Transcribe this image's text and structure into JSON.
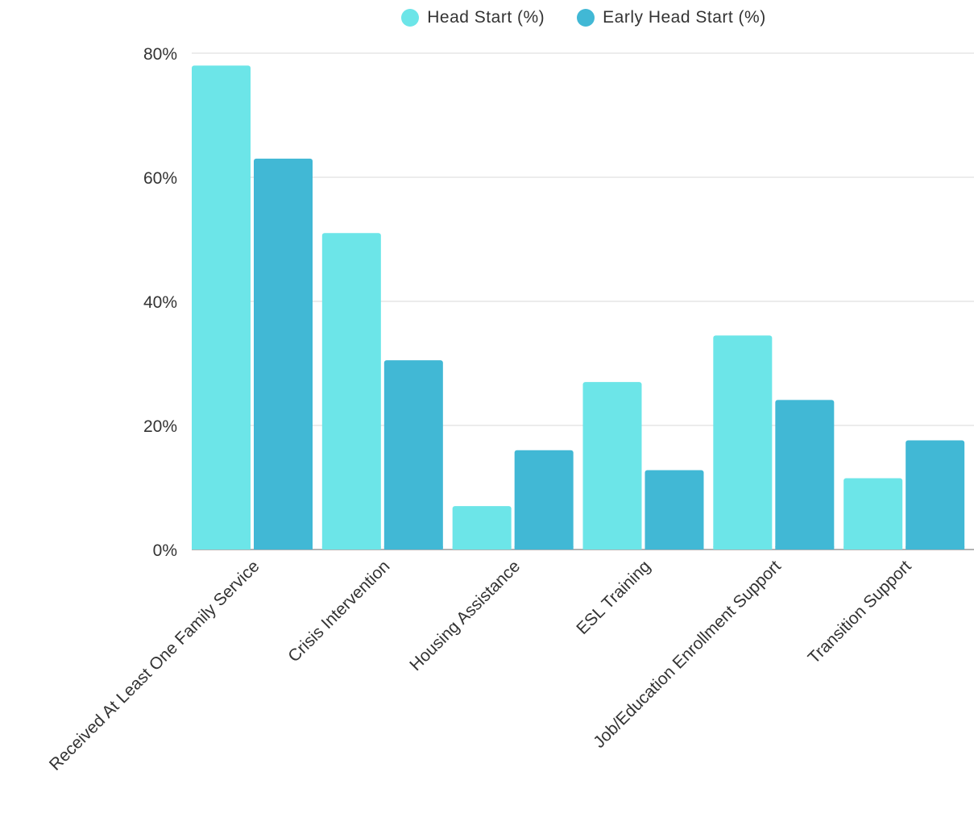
{
  "chart_data": {
    "type": "bar",
    "categories": [
      "Received At Least One Family Service",
      "Crisis Intervention",
      "Housing Assistance",
      "ESL Training",
      "Job/Education Enrollment Support",
      "Transition Support"
    ],
    "series": [
      {
        "name": "Head Start (%)",
        "color": "#6ce5e8",
        "values": [
          78,
          51,
          7,
          27,
          34.5,
          11.5
        ]
      },
      {
        "name": "Early Head Start (%)",
        "color": "#41b8d5",
        "values": [
          63,
          30.5,
          16,
          12.8,
          24.1,
          17.6
        ]
      }
    ],
    "y_ticks": [
      "0%",
      "20%",
      "40%",
      "60%",
      "80%"
    ],
    "ylim": [
      0,
      80
    ],
    "title": "",
    "xlabel": "",
    "ylabel": "",
    "grid": true,
    "legend_position": "top-center"
  }
}
